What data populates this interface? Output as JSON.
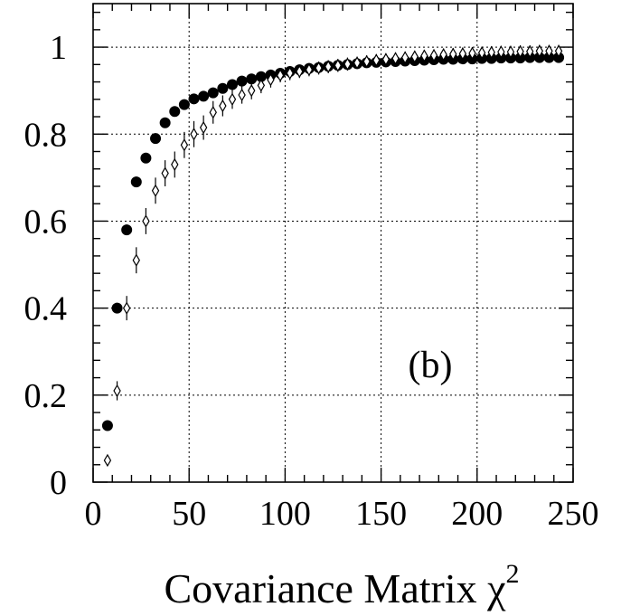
{
  "chart_data": {
    "type": "scatter",
    "title": "",
    "panel_label": "(b)",
    "xlabel": "Covariance Matrix χ",
    "xlabel_superscript": "2",
    "ylabel": "",
    "xlim": [
      0,
      250
    ],
    "ylim": [
      0,
      1.1
    ],
    "xticks": [
      0,
      50,
      100,
      150,
      200,
      250
    ],
    "yticks": [
      0,
      0.2,
      0.4,
      0.6,
      0.8,
      1
    ],
    "xtick_labels": [
      "0",
      "50",
      "100",
      "150",
      "200",
      "250"
    ],
    "ytick_labels": [
      "0",
      "0.2",
      "0.4",
      "0.6",
      "0.8",
      "1"
    ],
    "grid": true,
    "x": [
      7.5,
      12.5,
      17.5,
      22.5,
      27.5,
      32.5,
      37.5,
      42.5,
      47.5,
      52.5,
      57.5,
      62.5,
      67.5,
      72.5,
      77.5,
      82.5,
      87.5,
      92.5,
      97.5,
      102.5,
      107.5,
      112.5,
      117.5,
      122.5,
      127.5,
      132.5,
      137.5,
      142.5,
      147.5,
      152.5,
      157.5,
      162.5,
      167.5,
      172.5,
      177.5,
      182.5,
      187.5,
      192.5,
      197.5,
      202.5,
      207.5,
      212.5,
      217.5,
      222.5,
      227.5,
      232.5,
      237.5,
      242.5
    ],
    "series": [
      {
        "marker": "filled-circle",
        "values": [
          0.13,
          0.4,
          0.58,
          0.69,
          0.745,
          0.79,
          0.826,
          0.852,
          0.868,
          0.881,
          0.887,
          0.895,
          0.905,
          0.914,
          0.922,
          0.927,
          0.932,
          0.936,
          0.94,
          0.944,
          0.948,
          0.951,
          0.953,
          0.956,
          0.958,
          0.96,
          0.962,
          0.964,
          0.965,
          0.966,
          0.967,
          0.968,
          0.969,
          0.97,
          0.971,
          0.972,
          0.972,
          0.973,
          0.973,
          0.974,
          0.974,
          0.975,
          0.975,
          0.975,
          0.976,
          0.976,
          0.976,
          0.976
        ],
        "errors": [
          0.008,
          0.01,
          0.012,
          0.012,
          0.012,
          0.012,
          0.011,
          0.011,
          0.01,
          0.01,
          0.01,
          0.01,
          0.009,
          0.009,
          0.009,
          0.009,
          0.009,
          0.009,
          0.009,
          0.009,
          0.009,
          0.009,
          0.009,
          0.009,
          0.009,
          0.009,
          0.009,
          0.009,
          0.009,
          0.009,
          0.009,
          0.009,
          0.009,
          0.009,
          0.009,
          0.009,
          0.009,
          0.009,
          0.009,
          0.009,
          0.009,
          0.009,
          0.009,
          0.009,
          0.009,
          0.009,
          0.009,
          0.009
        ]
      },
      {
        "marker": "open-diamond",
        "values": [
          0.05,
          0.21,
          0.4,
          0.51,
          0.6,
          0.67,
          0.71,
          0.73,
          0.775,
          0.8,
          0.815,
          0.85,
          0.865,
          0.88,
          0.89,
          0.9,
          0.912,
          0.925,
          0.935,
          0.94,
          0.944,
          0.948,
          0.952,
          0.955,
          0.958,
          0.961,
          0.964,
          0.967,
          0.97,
          0.972,
          0.974,
          0.976,
          0.978,
          0.98,
          0.981,
          0.983,
          0.984,
          0.985,
          0.986,
          0.987,
          0.988,
          0.989,
          0.989,
          0.99,
          0.99,
          0.991,
          0.991,
          0.991
        ],
        "errors": [
          0.012,
          0.022,
          0.028,
          0.03,
          0.03,
          0.03,
          0.03,
          0.03,
          0.03,
          0.03,
          0.028,
          0.026,
          0.024,
          0.022,
          0.02,
          0.02,
          0.018,
          0.018,
          0.016,
          0.016,
          0.015,
          0.015,
          0.015,
          0.015,
          0.015,
          0.015,
          0.014,
          0.014,
          0.014,
          0.014,
          0.014,
          0.014,
          0.014,
          0.014,
          0.014,
          0.014,
          0.014,
          0.014,
          0.014,
          0.014,
          0.014,
          0.014,
          0.014,
          0.014,
          0.014,
          0.014,
          0.014,
          0.014
        ]
      }
    ]
  }
}
